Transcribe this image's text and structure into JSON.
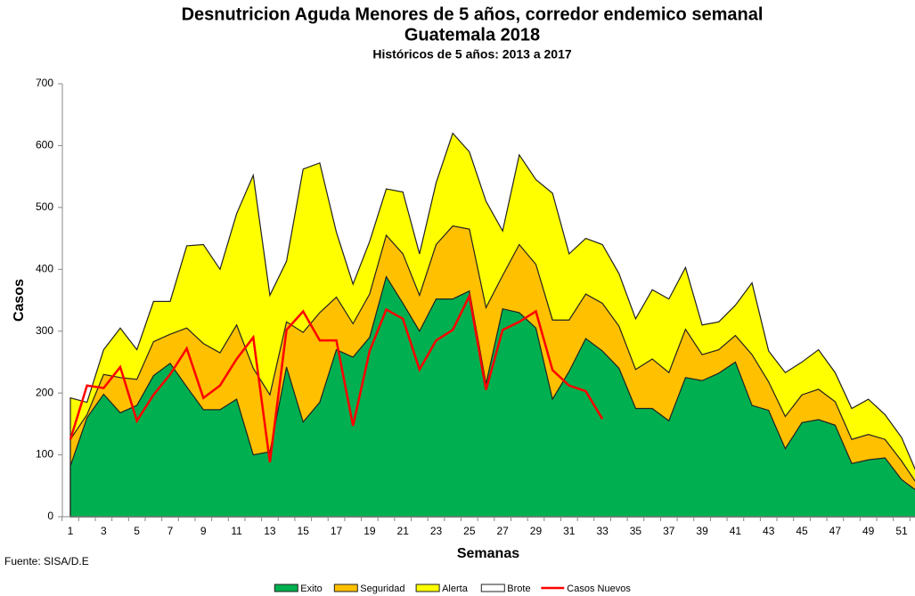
{
  "chart_data": {
    "type": "area",
    "title": "Desnutricion Aguda Menores de 5 años, corredor endemico semanal",
    "title2": "Guatemala 2018",
    "subtitle": "Históricos de 5 años: 2013 a 2017",
    "y_label": "Casos",
    "x_label": "Semanas",
    "source": "Fuente: SISA/D.E",
    "categories": [
      1,
      null,
      3,
      null,
      5,
      null,
      7,
      null,
      9,
      null,
      11,
      null,
      13,
      null,
      15,
      null,
      17,
      null,
      19,
      null,
      21,
      null,
      23,
      null,
      25,
      null,
      27,
      null,
      29,
      null,
      31,
      null,
      33,
      null,
      35,
      null,
      37,
      null,
      39,
      null,
      41,
      null,
      43,
      null,
      45,
      null,
      47,
      null,
      49,
      null,
      51,
      null
    ],
    "ylim": [
      0,
      700
    ],
    "yticks": [
      0,
      100,
      200,
      300,
      400,
      500,
      600,
      700
    ],
    "grid": false,
    "legend": "bottom",
    "series": [
      {
        "name": "Exito",
        "color": "#00b050",
        "kind": "area",
        "values": [
          82,
          160,
          198,
          168,
          180,
          228,
          248,
          210,
          173,
          173,
          190,
          100,
          105,
          242,
          153,
          185,
          270,
          258,
          290,
          388,
          345,
          300,
          352,
          352,
          365,
          215,
          336,
          330,
          305,
          190,
          235,
          288,
          268,
          240,
          175,
          175,
          155,
          225,
          220,
          232,
          250,
          180,
          172,
          110,
          152,
          157,
          148,
          86,
          92,
          95,
          60,
          40
        ]
      },
      {
        "name": "Seguridad",
        "color": "#ffc000",
        "kind": "area",
        "values": [
          125,
          165,
          230,
          225,
          222,
          283,
          295,
          305,
          280,
          265,
          310,
          240,
          197,
          315,
          298,
          330,
          355,
          312,
          360,
          455,
          425,
          358,
          440,
          470,
          465,
          338,
          390,
          440,
          408,
          318,
          318,
          360,
          345,
          308,
          238,
          255,
          233,
          303,
          262,
          270,
          293,
          262,
          218,
          162,
          197,
          206,
          186,
          125,
          133,
          125,
          90,
          50
        ]
      },
      {
        "name": "Alerta",
        "color": "#ffff00",
        "kind": "area",
        "values": [
          192,
          185,
          270,
          305,
          270,
          348,
          348,
          438,
          440,
          400,
          490,
          552,
          358,
          413,
          562,
          572,
          460,
          376,
          445,
          530,
          525,
          425,
          540,
          620,
          590,
          510,
          462,
          585,
          545,
          523,
          425,
          450,
          440,
          393,
          320,
          367,
          352,
          403,
          310,
          315,
          342,
          378,
          268,
          233,
          250,
          270,
          233,
          175,
          190,
          165,
          128,
          65
        ]
      },
      {
        "name": "Brote",
        "color": "#ffffff",
        "kind": "area",
        "values": [
          null,
          null,
          null,
          null,
          null,
          null,
          null,
          null,
          null,
          null,
          null,
          null,
          null,
          null,
          null,
          null,
          null,
          null,
          null,
          null,
          null,
          null,
          null,
          null,
          null,
          null,
          null,
          null,
          null,
          null,
          null,
          null,
          null,
          null,
          null,
          null,
          null,
          null,
          null,
          null,
          null,
          null,
          null,
          null,
          null,
          null,
          null,
          null,
          null,
          null,
          null,
          null
        ]
      },
      {
        "name": "Casos Nuevos",
        "color": "#ff0000",
        "kind": "line",
        "values": [
          125,
          212,
          208,
          242,
          155,
          197,
          230,
          272,
          192,
          212,
          255,
          290,
          88,
          302,
          332,
          285,
          285,
          147,
          268,
          335,
          320,
          238,
          285,
          302,
          357,
          205,
          302,
          315,
          332,
          237,
          212,
          203,
          158,
          null,
          null,
          null,
          null,
          null,
          null,
          null,
          null,
          null,
          null,
          null,
          null,
          null,
          null,
          null,
          null,
          null,
          null,
          null
        ]
      }
    ]
  }
}
